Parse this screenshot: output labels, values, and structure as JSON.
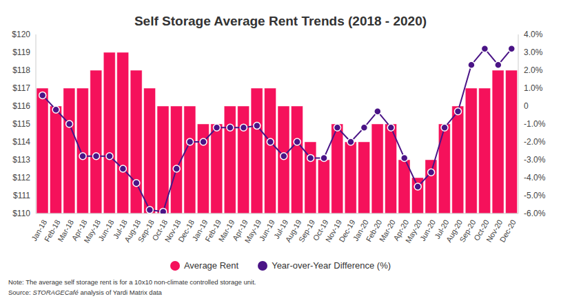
{
  "chart_data": {
    "type": "bar",
    "title": "Self Storage Average Rent Trends (2018 - 2020)",
    "categories": [
      "Jan-18",
      "Feb-18",
      "Mar-18",
      "Apr-18",
      "May-18",
      "Jun-18",
      "Jul-18",
      "Aug-18",
      "Sep-18",
      "Oct-18",
      "Nov-18",
      "Dec-18",
      "Jan-19",
      "Feb-19",
      "Mar-19",
      "Apr-19",
      "May-19",
      "Jun-19",
      "Jul-19",
      "Aug-19",
      "Sep-19",
      "Oct-19",
      "Nov-19",
      "Dec-19",
      "Jan-20",
      "Feb-20",
      "Mar-20",
      "Apr-20",
      "May-20",
      "Jun-20",
      "Jul-20",
      "Aug-20",
      "Sep-20",
      "Oct-20",
      "Nov-20",
      "Dec-20"
    ],
    "series": [
      {
        "name": "Average Rent",
        "type": "bar",
        "color": "#f5115b",
        "values": [
          117,
          116,
          117,
          117,
          118,
          119,
          119,
          118,
          117,
          116,
          116,
          116,
          115,
          115,
          116,
          116,
          117,
          117,
          116,
          116,
          114,
          113,
          115,
          114,
          114,
          115,
          115,
          113,
          112,
          113,
          115,
          116,
          117,
          117,
          118,
          118
        ]
      },
      {
        "name": "Year-over-Year Difference (%)",
        "type": "line",
        "axis": "y2",
        "color": "#4a1486",
        "marker": "circle",
        "values": [
          0.6,
          -0.2,
          -1.0,
          -2.8,
          -2.8,
          -2.8,
          -3.5,
          -4.3,
          -5.8,
          -5.9,
          -3.5,
          -2.0,
          -2.0,
          -1.2,
          -1.2,
          -1.2,
          -1.1,
          -2.0,
          -2.8,
          -2.0,
          -2.9,
          -2.9,
          -1.2,
          -2.0,
          -1.2,
          -0.3,
          -1.2,
          -2.9,
          -4.5,
          -3.7,
          -1.2,
          -0.3,
          2.3,
          3.2,
          2.3,
          3.2
        ]
      }
    ],
    "ylim": [
      110,
      120
    ],
    "yticks": [
      {
        "value": 110,
        "label": "$110"
      },
      {
        "value": 111,
        "label": "$111"
      },
      {
        "value": 112,
        "label": "$112"
      },
      {
        "value": 113,
        "label": "$113"
      },
      {
        "value": 114,
        "label": "$114"
      },
      {
        "value": 115,
        "label": "$115"
      },
      {
        "value": 116,
        "label": "$116"
      },
      {
        "value": 117,
        "label": "$117"
      },
      {
        "value": 118,
        "label": "$118"
      },
      {
        "value": 119,
        "label": "$119"
      },
      {
        "value": 120,
        "label": "$120"
      }
    ],
    "y2lim": [
      -6,
      4
    ],
    "y2ticks": [
      {
        "value": -6,
        "label": "-6.0%"
      },
      {
        "value": -5,
        "label": "-5.0%"
      },
      {
        "value": -4,
        "label": "-4.0%"
      },
      {
        "value": -3,
        "label": "-3.0%"
      },
      {
        "value": -2,
        "label": "-2.0%"
      },
      {
        "value": -1,
        "label": "-1.0%"
      },
      0,
      {
        "value": 1,
        "label": "1.0%"
      },
      {
        "value": 2,
        "label": "2.0%"
      },
      {
        "value": 3,
        "label": "3.0%"
      },
      {
        "value": 4,
        "label": "4.0%"
      }
    ],
    "grid": false,
    "legend": "bottom",
    "annotations": [
      "Note: The average self storage rent is for a 10x10 non-climate controlled storage unit.",
      "Source: STORAGECafé analysis of Yardi Matrix data"
    ]
  }
}
